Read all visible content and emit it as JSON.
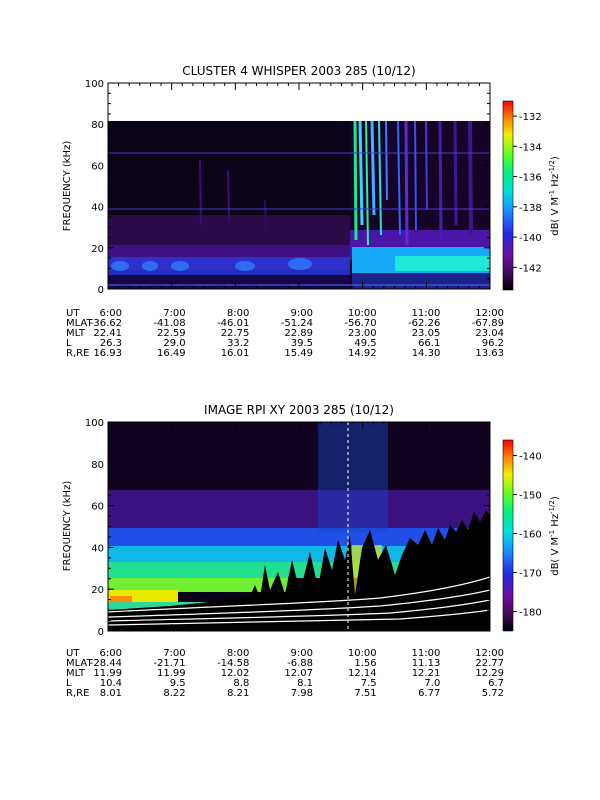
{
  "chart_data": [
    {
      "type": "heatmap",
      "title": "CLUSTER 4 WHISPER 2003 285 (10/12)",
      "ylabel": "FREQUENCY (kHz)",
      "ylim": [
        0,
        100
      ],
      "yticks": [
        "0",
        "20",
        "40",
        "60",
        "80",
        "100"
      ],
      "xlim_hours": [
        6,
        12
      ],
      "colorbar": {
        "label": "dB( V M",
        "label_sup1": "-1",
        "label_mid": " Hz",
        "label_sup2": "-1/2",
        "label_end": ")",
        "range": [
          -143.5,
          -131
        ],
        "ticks": [
          "-132",
          "-134",
          "-136",
          "-138",
          "-140",
          "-142"
        ],
        "tick_values": [
          -132,
          -134,
          -136,
          -138,
          -140,
          -142
        ]
      },
      "ephemeris": {
        "labels": [
          "UT",
          "MLAT",
          "MLT",
          "L",
          "R,RE"
        ],
        "columns": [
          [
            "6:00",
            "-36.62",
            "22.41",
            "26.3",
            "16.93"
          ],
          [
            "7:00",
            "-41.08",
            "22.59",
            "29.0",
            "16.49"
          ],
          [
            "8:00",
            "-46.01",
            "22.75",
            "33.2",
            "16.01"
          ],
          [
            "9:00",
            "-51.24",
            "22.89",
            "39.5",
            "15.49"
          ],
          [
            "10:00",
            "-56.70",
            "23.00",
            "49.5",
            "14.92"
          ],
          [
            "11:00",
            "-62.26",
            "23.05",
            "66.1",
            "14.30"
          ],
          [
            "12:00",
            "-67.89",
            "23.04",
            "96.2",
            "13.63"
          ]
        ]
      }
    },
    {
      "type": "heatmap",
      "title": "IMAGE RPI XY 2003 285 (10/12)",
      "ylabel": "FREQUENCY (kHz)",
      "ylim": [
        0,
        100
      ],
      "yticks": [
        "0",
        "20",
        "40",
        "60",
        "80",
        "100"
      ],
      "xlim_hours": [
        6,
        12
      ],
      "colorbar": {
        "label": "dB( V M",
        "label_sup1": "-1",
        "label_mid": " Hz",
        "label_sup2": "-1/2",
        "label_end": ")",
        "range": [
          -185,
          -136
        ],
        "ticks": [
          "-140",
          "-150",
          "-160",
          "-170",
          "-180"
        ],
        "tick_values": [
          -140,
          -150,
          -160,
          -170,
          -180
        ]
      },
      "ephemeris": {
        "labels": [
          "UT",
          "MLAT",
          "MLT",
          "L",
          "R,RE"
        ],
        "columns": [
          [
            "6:00",
            "-28.44",
            "11.99",
            "10.4",
            "8.01"
          ],
          [
            "7:00",
            "-21.71",
            "11.99",
            "9.5",
            "8.22"
          ],
          [
            "8:00",
            "-14.58",
            "12.02",
            "8.8",
            "8.21"
          ],
          [
            "9:00",
            "-6.88",
            "12.07",
            "8.1",
            "7.98"
          ],
          [
            "10:00",
            "1.56",
            "12.14",
            "7.5",
            "7.51"
          ],
          [
            "11:00",
            "11.13",
            "12.21",
            "7.0",
            "6.77"
          ],
          [
            "12:00",
            "22.77",
            "12.29",
            "6.7",
            "5.72"
          ]
        ]
      }
    }
  ]
}
